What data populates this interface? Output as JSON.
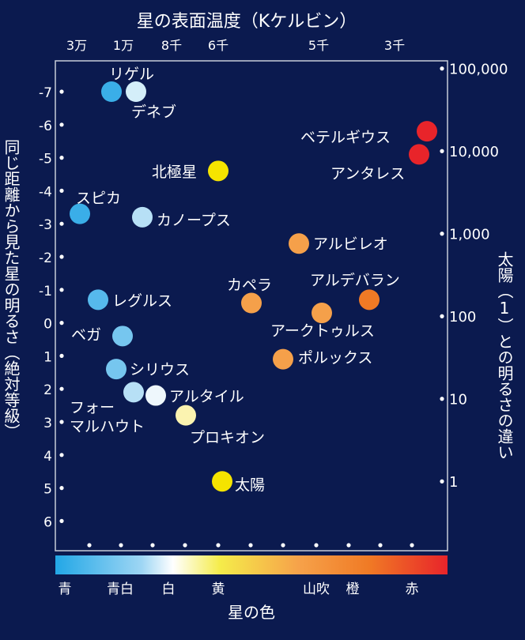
{
  "colors": {
    "background": "#0b1a4f",
    "frame": "#c8ccd8",
    "text": "#ffffff"
  },
  "chart_data": {
    "type": "scatter",
    "title": "星の表面温度（Kケルビン）",
    "xlabel": "星の色",
    "ylabel_left": "同じ距離から見た星の明るさ（絶対等級）",
    "ylabel_right": "太陽（1）との明るさの違い",
    "x_top_ticks": [
      "3万",
      "1万",
      "8千",
      "6千",
      "5千",
      "3千"
    ],
    "y_left_ticks": [
      "-7",
      "-6",
      "-5",
      "-4",
      "-3",
      "-2",
      "-1",
      "0",
      "1",
      "2",
      "3",
      "4",
      "5",
      "6"
    ],
    "y_left_ticks_values": [
      -7,
      -6,
      -5,
      -4,
      -3,
      -2,
      -1,
      0,
      1,
      2,
      3,
      4,
      5,
      6
    ],
    "y_right_ticks": [
      "100,000",
      "10,000",
      "1,000",
      "100",
      "10",
      "1"
    ],
    "y_right_ticks_values": [
      100000,
      10000,
      1000,
      100,
      10,
      1
    ],
    "color_scale_labels": [
      "青",
      "青白",
      "白",
      "黄",
      "山吹",
      "橙",
      "赤"
    ],
    "ylim": [
      -7.8,
      6.6
    ],
    "grid": false,
    "stars": [
      {
        "name": "リゲル",
        "magnitude": -7.0,
        "color": "#3aaee8"
      },
      {
        "name": "デネブ",
        "magnitude": -7.0,
        "color": "#d4eef9"
      },
      {
        "name": "ベテルギウス",
        "magnitude": -5.8,
        "color": "#e8242a"
      },
      {
        "name": "アンタレス",
        "magnitude": -5.1,
        "color": "#e8242a"
      },
      {
        "name": "北極星",
        "magnitude": -4.6,
        "color": "#f5e400"
      },
      {
        "name": "スピカ",
        "magnitude": -3.3,
        "color": "#3aaee8"
      },
      {
        "name": "カノープス",
        "magnitude": -3.2,
        "color": "#b7e0f6"
      },
      {
        "name": "アルビレオ",
        "magnitude": -2.4,
        "color": "#f5a04a"
      },
      {
        "name": "アルデバラン",
        "magnitude": -0.7,
        "color": "#f07a25"
      },
      {
        "name": "カペラ",
        "magnitude": -0.6,
        "color": "#f5a04a"
      },
      {
        "name": "レグルス",
        "magnitude": -0.7,
        "color": "#56b9ec"
      },
      {
        "name": "アークトゥルス",
        "magnitude": -0.3,
        "color": "#f5a04a"
      },
      {
        "name": "ベガ",
        "magnitude": 0.4,
        "color": "#76c6ef"
      },
      {
        "name": "ポルックス",
        "magnitude": 1.1,
        "color": "#f5a04a"
      },
      {
        "name": "シリウス",
        "magnitude": 1.4,
        "color": "#76c6ef"
      },
      {
        "name": "フォーマルハウト",
        "magnitude": 2.1,
        "color": "#b7e0f6"
      },
      {
        "name": "アルタイル",
        "magnitude": 2.2,
        "color": "#eef7fc"
      },
      {
        "name": "プロキオン",
        "magnitude": 2.8,
        "color": "#fbf3b0"
      },
      {
        "name": "太陽",
        "magnitude": 4.8,
        "color": "#f5e400"
      }
    ]
  }
}
